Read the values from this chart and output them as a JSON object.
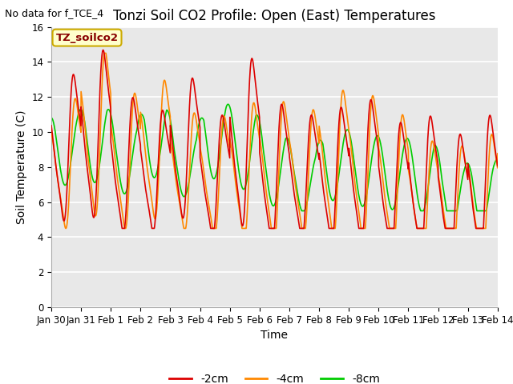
{
  "title": "Tonzi Soil CO2 Profile: Open (East) Temperatures",
  "subtitle": "No data for f_TCE_4",
  "ylabel": "Soil Temperature (C)",
  "xlabel": "Time",
  "ylim": [
    0,
    16
  ],
  "yticks": [
    0,
    2,
    4,
    6,
    8,
    10,
    12,
    14,
    16
  ],
  "background_color": "#e8e8e8",
  "legend_label_2cm": "-2cm",
  "legend_label_4cm": "-4cm",
  "legend_label_8cm": "-8cm",
  "color_2cm": "#dd0000",
  "color_4cm": "#ff8800",
  "color_8cm": "#00cc00",
  "legend_box_color": "#ffffcc",
  "legend_box_edge": "#ccaa00",
  "legend_text_color": "#880000",
  "site_label": "TZ_soilco2",
  "x_tick_labels": [
    "Jan 30",
    "Jan 31",
    "Feb 1",
    "Feb 2",
    "Feb 3",
    "Feb 4",
    "Feb 5",
    "Feb 6",
    "Feb 7",
    "Feb 8",
    "Feb 9",
    "Feb 10",
    "Feb 11",
    "Feb 12",
    "Feb 13",
    "Feb 14"
  ],
  "title_fontsize": 12,
  "axis_fontsize": 10,
  "tick_fontsize": 8.5,
  "linewidth": 1.2
}
